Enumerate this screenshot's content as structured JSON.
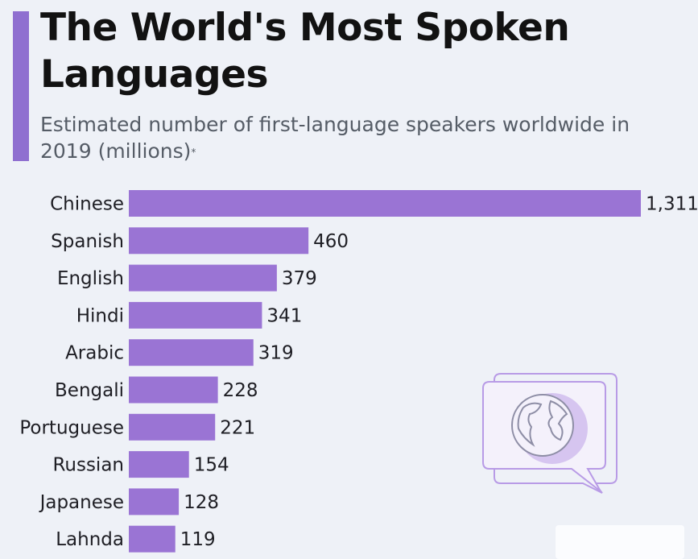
{
  "header": {
    "title": "The World's Most Spoken Languages",
    "subtitle": "Estimated number of first-language speakers worldwide in 2019 (millions)",
    "subtitle_mark": "*"
  },
  "colors": {
    "accent": "#8f6fd0",
    "bar": "#9a74d4",
    "background": "#eef1f7"
  },
  "illustration": {
    "icon": "speech-bubble-globe-icon"
  },
  "chart_data": {
    "type": "bar",
    "orientation": "horizontal",
    "title": "The World's Most Spoken Languages",
    "subtitle": "Estimated number of first-language speakers worldwide in 2019 (millions)*",
    "categories": [
      "Chinese",
      "Spanish",
      "English",
      "Hindi",
      "Arabic",
      "Bengali",
      "Portuguese",
      "Russian",
      "Japanese",
      "Lahnda"
    ],
    "values": [
      1311,
      460,
      379,
      341,
      319,
      228,
      221,
      154,
      128,
      119
    ],
    "value_labels": [
      "1,311",
      "460",
      "379",
      "341",
      "319",
      "228",
      "221",
      "154",
      "128",
      "119"
    ],
    "xlabel": "",
    "ylabel": "",
    "xlim": [
      0,
      1311
    ],
    "grid": false,
    "legend": "none"
  }
}
